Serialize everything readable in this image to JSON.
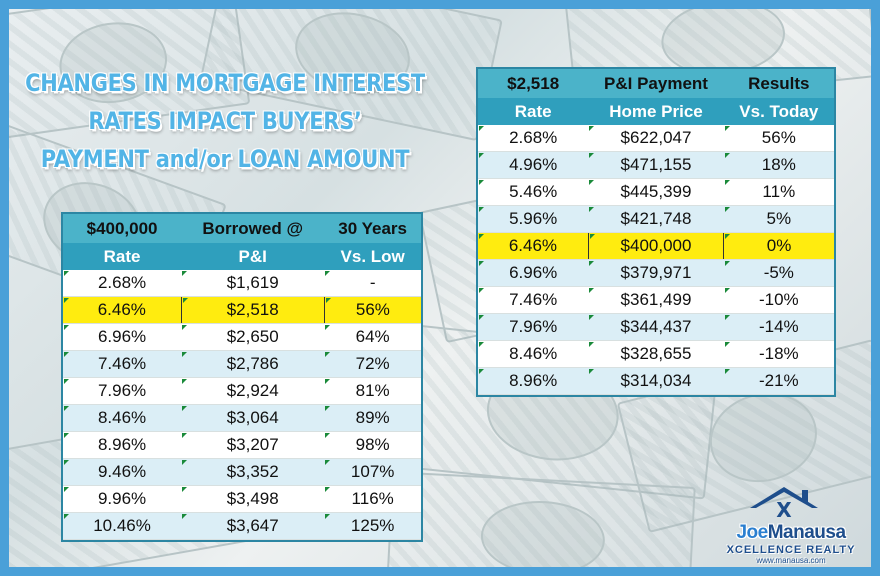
{
  "title": {
    "lines": [
      "CHANGES IN MORTGAGE INTEREST",
      "RATES IMPACT BUYERS’",
      "PAYMENT and/or LOAN AMOUNT"
    ]
  },
  "left_table": {
    "header": [
      "$400,000",
      "Borrowed @",
      "30 Years"
    ],
    "columns": [
      "Rate",
      "P&I",
      "Vs. Low"
    ],
    "highlight_row": 1,
    "rows": [
      [
        "2.68%",
        "$1,619",
        "-"
      ],
      [
        "6.46%",
        "$2,518",
        "56%"
      ],
      [
        "6.96%",
        "$2,650",
        "64%"
      ],
      [
        "7.46%",
        "$2,786",
        "72%"
      ],
      [
        "7.96%",
        "$2,924",
        "81%"
      ],
      [
        "8.46%",
        "$3,064",
        "89%"
      ],
      [
        "8.96%",
        "$3,207",
        "98%"
      ],
      [
        "9.46%",
        "$3,352",
        "107%"
      ],
      [
        "9.96%",
        "$3,498",
        "116%"
      ],
      [
        "10.46%",
        "$3,647",
        "125%"
      ]
    ]
  },
  "right_table": {
    "header": [
      "$2,518",
      "P&I Payment",
      "Results"
    ],
    "columns": [
      "Rate",
      "Home Price",
      "Vs. Today"
    ],
    "highlight_row": 4,
    "rows": [
      [
        "2.68%",
        "$622,047",
        "56%"
      ],
      [
        "4.96%",
        "$471,155",
        "18%"
      ],
      [
        "5.46%",
        "$445,399",
        "11%"
      ],
      [
        "5.96%",
        "$421,748",
        "5%"
      ],
      [
        "6.46%",
        "$400,000",
        "0%"
      ],
      [
        "6.96%",
        "$379,971",
        "-5%"
      ],
      [
        "7.46%",
        "$361,499",
        "-10%"
      ],
      [
        "7.96%",
        "$344,437",
        "-14%"
      ],
      [
        "8.46%",
        "$328,655",
        "-18%"
      ],
      [
        "8.96%",
        "$314,034",
        "-21%"
      ]
    ]
  },
  "logo": {
    "brand_first": "Joe",
    "brand_second": "Manausa",
    "subtitle": "XCELLENCE REALTY",
    "url": "www.manausa.com"
  },
  "colors": {
    "frame": "#4aa0d8",
    "title": "#52b4e6",
    "table_header": "#4bb3c9",
    "table_subheader": "#2f9fbd",
    "row_alt": "#dbeef6",
    "highlight": "#ffec0f",
    "logo_blue": "#1e4e8c"
  }
}
